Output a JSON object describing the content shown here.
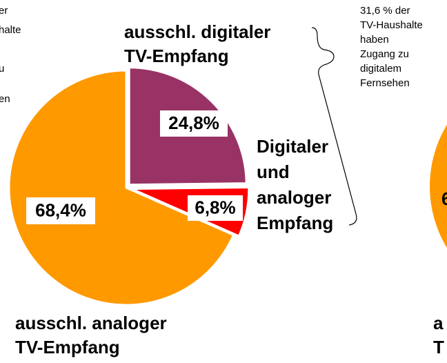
{
  "chart_data": {
    "type": "pie",
    "categories": [
      [
        "ausschl. digitaler",
        "TV-Empfang"
      ],
      [
        "Digitaler",
        "und",
        "analoger",
        "Empfang"
      ],
      [
        "ausschl. analoger",
        "TV-Empfang"
      ]
    ],
    "values": [
      24.8,
      6.8,
      68.4
    ],
    "value_labels": [
      "24,8%",
      "6,8%",
      "68,4%"
    ],
    "colors": [
      "#993366",
      "#ff0000",
      "#ff9900"
    ],
    "annotation": [
      "31,6 % der",
      "TV-Haushalte",
      "haben",
      "Zugang zu",
      "digitalem",
      "Fernsehen"
    ],
    "left_fragments": [
      "er",
      "halte",
      "u",
      "en"
    ],
    "right_fragments": [
      "6",
      "a",
      "T"
    ]
  }
}
